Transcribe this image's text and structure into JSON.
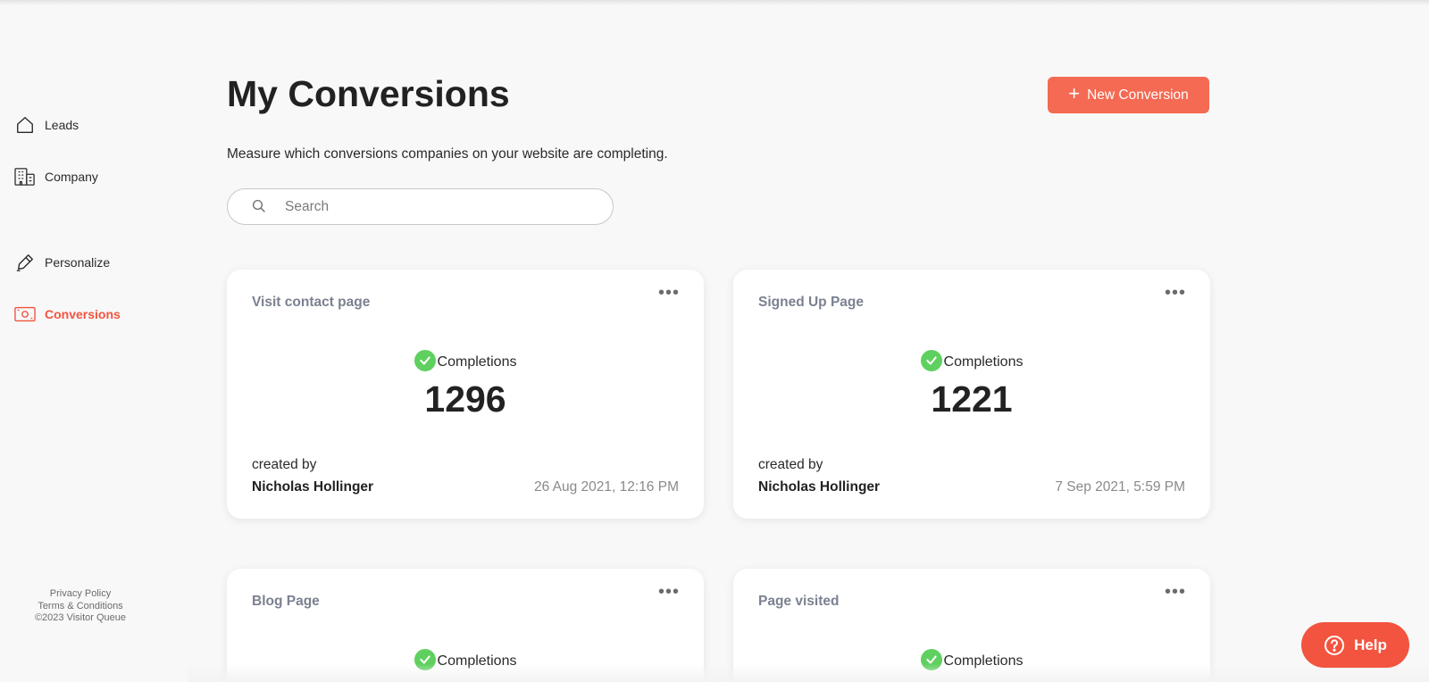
{
  "sidebar": {
    "items": [
      {
        "label": "Leads",
        "icon": "home-icon"
      },
      {
        "label": "Company",
        "icon": "building-icon"
      },
      {
        "label": "Personalize",
        "icon": "pen-icon"
      },
      {
        "label": "Conversions",
        "icon": "money-icon",
        "active": true
      }
    ],
    "footer": {
      "privacy": "Privacy Policy",
      "terms": "Terms & Conditions",
      "copyright": "©2023 Visitor Queue"
    }
  },
  "header": {
    "title": "My Conversions",
    "subtitle": "Measure which conversions companies on your website are completing.",
    "new_button": "New Conversion"
  },
  "search": {
    "placeholder": "Search",
    "value": ""
  },
  "cards": [
    {
      "title": "Visit contact page",
      "completions_label": "Completions",
      "count": "1296",
      "created_by_label": "created by",
      "creator": "Nicholas Hollinger",
      "date": "26 Aug 2021, 12:16 PM"
    },
    {
      "title": "Signed Up Page",
      "completions_label": "Completions",
      "count": "1221",
      "created_by_label": "created by",
      "creator": "Nicholas Hollinger",
      "date": "7 Sep 2021, 5:59 PM"
    },
    {
      "title": "Blog Page",
      "completions_label": "Completions"
    },
    {
      "title": "Page visited",
      "completions_label": "Completions"
    }
  ],
  "help": {
    "label": "Help"
  },
  "colors": {
    "accent": "#f2543f",
    "button": "#f46a52",
    "check": "#5fd05f",
    "card_title": "#7b8190"
  }
}
